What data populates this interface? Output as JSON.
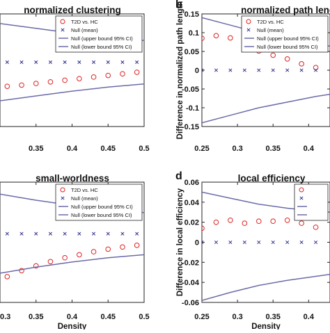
{
  "chart_data": [
    {
      "panel_letter": "",
      "type": "scatter",
      "title": "normalized clustering",
      "xlabel": "",
      "ylabel": "",
      "xlim": [
        0.3,
        0.5
      ],
      "ylim": [
        -0.16,
        0.12
      ],
      "xticks": [
        0.3,
        0.35,
        0.4,
        0.45,
        0.5
      ],
      "xtick_labels": [
        "",
        "0.35",
        "0.4",
        "0.45",
        "0.5"
      ],
      "yticks": [],
      "ytick_labels": [],
      "legend": {
        "placement": "top-right",
        "entries": [
          "T2D vs. HC",
          "Null (mean)",
          "Null (upper bound 95% CI)",
          "Null (lower bound 95% CI)"
        ]
      },
      "series": [
        {
          "name": "T2D vs. HC",
          "marker": "circle",
          "color": "#dd2222",
          "x": [
            0.31,
            0.33,
            0.35,
            0.37,
            0.39,
            0.41,
            0.43,
            0.45,
            0.47,
            0.49
          ],
          "y": [
            -0.06,
            -0.057,
            -0.053,
            -0.049,
            -0.045,
            -0.041,
            -0.037,
            -0.033,
            -0.029,
            -0.025
          ]
        },
        {
          "name": "Null (mean)",
          "marker": "x",
          "color": "#30308a",
          "x": [
            0.31,
            0.33,
            0.35,
            0.37,
            0.39,
            0.41,
            0.43,
            0.45,
            0.47,
            0.49
          ],
          "y": [
            0,
            0,
            0,
            0,
            0,
            0,
            0,
            0,
            0,
            0
          ]
        },
        {
          "name": "Null (upper bound 95% CI)",
          "marker": "line",
          "color": "#6a6aa8",
          "x": [
            0.3,
            0.35,
            0.4,
            0.45,
            0.5
          ],
          "y": [
            0.096,
            0.084,
            0.072,
            0.062,
            0.054
          ]
        },
        {
          "name": "Null (lower bound 95% CI)",
          "marker": "line",
          "color": "#6a6aa8",
          "x": [
            0.3,
            0.35,
            0.4,
            0.45,
            0.5
          ],
          "y": [
            -0.096,
            -0.084,
            -0.072,
            -0.062,
            -0.054
          ]
        }
      ]
    },
    {
      "panel_letter": "b",
      "type": "scatter",
      "title": "normalized path length",
      "xlabel": "",
      "ylabel": "Difference in normalized path length",
      "xlim": [
        0.25,
        0.43
      ],
      "ylim": [
        -0.15,
        0.15
      ],
      "xticks": [
        0.25,
        0.3,
        0.35,
        0.4
      ],
      "xtick_labels": [
        "0.25",
        "0.3",
        "0.35",
        "0.4"
      ],
      "yticks": [
        -0.15,
        -0.1,
        -0.05,
        0,
        0.05,
        0.1,
        0.15
      ],
      "ytick_labels": [
        "-0.15",
        "-0.1",
        "-0.05",
        "0",
        "0.05",
        "0.1",
        "0.15"
      ],
      "legend": {
        "placement": "top-right",
        "entries": [
          "T2D vs. HC",
          "Null (mean)",
          "Null (upper bound 95% CI)",
          "Null (lower bound 95% CI)"
        ]
      },
      "series": [
        {
          "name": "T2D vs. HC",
          "marker": "circle",
          "color": "#dd2222",
          "x": [
            0.25,
            0.27,
            0.29,
            0.31,
            0.33,
            0.35,
            0.37,
            0.39,
            0.41
          ],
          "y": [
            0.085,
            0.092,
            0.086,
            0.077,
            0.051,
            0.04,
            0.03,
            0.017,
            0.007
          ]
        },
        {
          "name": "Null (mean)",
          "marker": "x",
          "color": "#30308a",
          "x": [
            0.25,
            0.27,
            0.29,
            0.31,
            0.33,
            0.35,
            0.37,
            0.39,
            0.41
          ],
          "y": [
            0,
            0,
            0,
            0,
            0,
            0,
            0,
            0,
            0
          ]
        },
        {
          "name": "Null (upper bound 95% CI)",
          "marker": "line",
          "color": "#6a6aa8",
          "x": [
            0.25,
            0.29,
            0.33,
            0.37,
            0.41,
            0.43
          ],
          "y": [
            0.14,
            0.12,
            0.1,
            0.085,
            0.07,
            0.064
          ]
        },
        {
          "name": "Null (lower bound 95% CI)",
          "marker": "line",
          "color": "#6a6aa8",
          "x": [
            0.25,
            0.29,
            0.33,
            0.37,
            0.41,
            0.43
          ],
          "y": [
            -0.14,
            -0.12,
            -0.1,
            -0.085,
            -0.07,
            -0.064
          ]
        }
      ]
    },
    {
      "panel_letter": "",
      "type": "scatter",
      "title": "small-worldness",
      "xlabel": "Density",
      "ylabel": "",
      "xlim": [
        0.3,
        0.5
      ],
      "ylim": [
        -0.16,
        0.12
      ],
      "xticks": [
        0.3,
        0.35,
        0.4,
        0.45,
        0.5
      ],
      "xtick_labels": [
        "0.3",
        "0.35",
        "0.4",
        "0.45",
        "0.5"
      ],
      "yticks": [],
      "ytick_labels": [],
      "legend": {
        "placement": "top-right",
        "entries": [
          "T2D vs. HC",
          "Null (mean)",
          "Null (upper bound 95% CI)",
          "Null (lower bound 95% CI)"
        ]
      },
      "series": [
        {
          "name": "T2D vs. HC",
          "marker": "circle",
          "color": "#dd2222",
          "x": [
            0.31,
            0.33,
            0.35,
            0.37,
            0.39,
            0.41,
            0.43,
            0.45,
            0.47,
            0.49
          ],
          "y": [
            -0.1,
            -0.086,
            -0.075,
            -0.065,
            -0.056,
            -0.049,
            -0.042,
            -0.036,
            -0.031,
            -0.027
          ]
        },
        {
          "name": "Null (mean)",
          "marker": "x",
          "color": "#30308a",
          "x": [
            0.31,
            0.33,
            0.35,
            0.37,
            0.39,
            0.41,
            0.43,
            0.45,
            0.47,
            0.49
          ],
          "y": [
            0,
            0,
            0,
            0,
            0,
            0,
            0,
            0,
            0,
            0
          ]
        },
        {
          "name": "Null (upper bound 95% CI)",
          "marker": "line",
          "color": "#6a6aa8",
          "x": [
            0.3,
            0.35,
            0.4,
            0.45,
            0.5
          ],
          "y": [
            0.092,
            0.078,
            0.066,
            0.056,
            0.049
          ]
        },
        {
          "name": "Null (lower bound 95% CI)",
          "marker": "line",
          "color": "#6a6aa8",
          "x": [
            0.3,
            0.35,
            0.4,
            0.45,
            0.5
          ],
          "y": [
            -0.092,
            -0.078,
            -0.066,
            -0.056,
            -0.049
          ]
        }
      ]
    },
    {
      "panel_letter": "d",
      "type": "scatter",
      "title": "local efficiency",
      "xlabel": "Density",
      "ylabel": "Difference in local efficiency",
      "xlim": [
        0.25,
        0.43
      ],
      "ylim": [
        -0.06,
        0.06
      ],
      "xticks": [
        0.25,
        0.3,
        0.35,
        0.4
      ],
      "xtick_labels": [
        "0.25",
        "0.3",
        "0.35",
        "0.4"
      ],
      "yticks": [
        -0.06,
        -0.04,
        -0.02,
        0,
        0.02,
        0.04,
        0.06
      ],
      "ytick_labels": [
        "-0.06",
        "-0.04",
        "-0.02",
        "0",
        "0.02",
        "0.04",
        "0.06"
      ],
      "legend": {
        "placement": "top-right",
        "entries": [
          "",
          "",
          "",
          ""
        ]
      },
      "series": [
        {
          "name": "T2D vs. HC",
          "marker": "circle",
          "color": "#dd2222",
          "x": [
            0.25,
            0.27,
            0.29,
            0.31,
            0.33,
            0.35,
            0.37,
            0.39,
            0.41
          ],
          "y": [
            0.014,
            0.02,
            0.022,
            0.019,
            0.021,
            0.021,
            0.022,
            0.019,
            0.015
          ]
        },
        {
          "name": "Null (mean)",
          "marker": "x",
          "color": "#30308a",
          "x": [
            0.25,
            0.27,
            0.29,
            0.31,
            0.33,
            0.35,
            0.37,
            0.39,
            0.41
          ],
          "y": [
            0,
            0,
            0,
            0,
            0,
            0,
            0,
            0,
            0
          ]
        },
        {
          "name": "Null (upper bound 95% CI)",
          "marker": "line",
          "color": "#6a6aa8",
          "x": [
            0.25,
            0.29,
            0.33,
            0.37,
            0.41,
            0.43
          ],
          "y": [
            0.05,
            0.044,
            0.038,
            0.034,
            0.031,
            0.03
          ]
        },
        {
          "name": "Null (lower bound 95% CI)",
          "marker": "line",
          "color": "#6a6aa8",
          "x": [
            0.25,
            0.29,
            0.33,
            0.37,
            0.41,
            0.43
          ],
          "y": [
            -0.058,
            -0.05,
            -0.043,
            -0.038,
            -0.034,
            -0.032
          ]
        }
      ]
    }
  ]
}
